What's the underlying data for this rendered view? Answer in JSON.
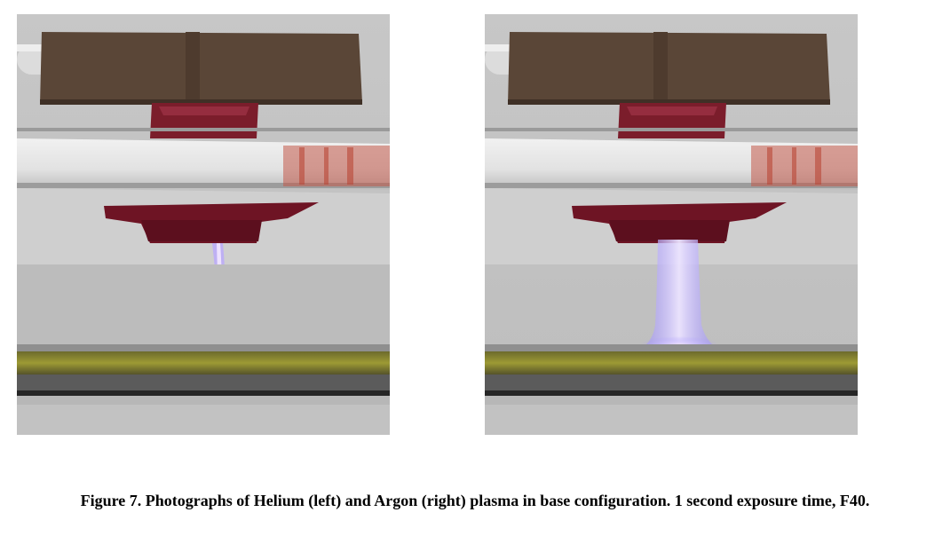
{
  "figure": {
    "caption": "Figure 7. Photographs of Helium (left) and Argon (right) plasma in base configuration. 1 second exposure time, F40.",
    "photos": [
      {
        "position": "left",
        "plasma_gas": "Helium",
        "plasma_style": "thin",
        "plasma_color": "#b8a6ff"
      },
      {
        "position": "right",
        "plasma_gas": "Argon",
        "plasma_style": "wide",
        "plasma_color": "#a999ff"
      }
    ]
  }
}
